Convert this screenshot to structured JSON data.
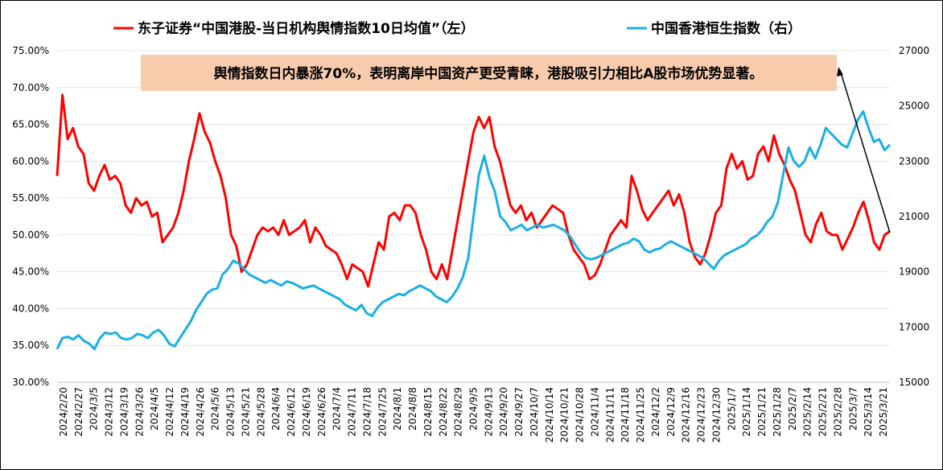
{
  "chart_data": {
    "type": "line",
    "title": "",
    "legend_position": "top",
    "grid": true,
    "annotation": "舆情指数日内暴涨70%，表明离岸中国资产更受青睐，港股吸引力相比A股市场优势显著。",
    "annotation_bg": "#F8CBAD",
    "y_left": {
      "min": 0.3,
      "max": 0.75,
      "ticks": [
        "30.00%",
        "35.00%",
        "40.00%",
        "45.00%",
        "50.00%",
        "55.00%",
        "60.00%",
        "65.00%",
        "70.00%",
        "75.00%"
      ]
    },
    "y_right": {
      "min": 15000,
      "max": 27000,
      "ticks": [
        "15000",
        "17000",
        "19000",
        "21000",
        "23000",
        "25000",
        "27000"
      ]
    },
    "x_tick_labels": [
      "2024/2/20",
      "2024/2/27",
      "2024/3/5",
      "2024/3/12",
      "2024/3/19",
      "2024/3/26",
      "2024/4/5",
      "2024/4/12",
      "2024/4/19",
      "2024/4/26",
      "2024/5/6",
      "2024/5/13",
      "2024/5/21",
      "2024/5/28",
      "2024/6/4",
      "2024/6/12",
      "2024/6/19",
      "2024/6/26",
      "2024/7/4",
      "2024/7/11",
      "2024/7/18",
      "2024/7/25",
      "2024/8/1",
      "2024/8/8",
      "2024/8/15",
      "2024/8/22",
      "2024/8/29",
      "2024/9/5",
      "2024/9/13",
      "2024/9/20",
      "2024/9/27",
      "2024/10/7",
      "2024/10/14",
      "2024/10/21",
      "2024/10/28",
      "2024/11/4",
      "2024/11/11",
      "2024/11/18",
      "2024/11/25",
      "2024/12/2",
      "2024/12/9",
      "2024/12/16",
      "2024/12/23",
      "2024/12/30",
      "2025/1/7",
      "2025/1/14",
      "2025/1/21",
      "2025/1/28",
      "2025/2/7",
      "2025/2/14",
      "2025/2/21",
      "2025/2/28",
      "2025/3/7",
      "2025/3/14",
      "2025/3/21"
    ],
    "series": [
      {
        "name": "东子证券“中国港股-当日机构舆情指数10日均值”（左）",
        "color": "#FF0000",
        "axis": "left",
        "values": [
          0.58,
          0.69,
          0.63,
          0.645,
          0.62,
          0.61,
          0.57,
          0.56,
          0.58,
          0.595,
          0.575,
          0.58,
          0.57,
          0.54,
          0.53,
          0.55,
          0.54,
          0.545,
          0.525,
          0.53,
          0.49,
          0.5,
          0.51,
          0.53,
          0.56,
          0.6,
          0.63,
          0.665,
          0.64,
          0.625,
          0.6,
          0.58,
          0.55,
          0.5,
          0.485,
          0.45,
          0.46,
          0.48,
          0.5,
          0.51,
          0.505,
          0.51,
          0.5,
          0.52,
          0.5,
          0.505,
          0.51,
          0.52,
          0.49,
          0.51,
          0.5,
          0.485,
          0.48,
          0.475,
          0.46,
          0.44,
          0.46,
          0.455,
          0.45,
          0.43,
          0.46,
          0.49,
          0.48,
          0.525,
          0.53,
          0.52,
          0.54,
          0.54,
          0.53,
          0.5,
          0.48,
          0.45,
          0.44,
          0.46,
          0.44,
          0.48,
          0.52,
          0.56,
          0.6,
          0.64,
          0.66,
          0.645,
          0.66,
          0.62,
          0.6,
          0.57,
          0.54,
          0.53,
          0.54,
          0.52,
          0.53,
          0.51,
          0.52,
          0.53,
          0.54,
          0.535,
          0.53,
          0.5,
          0.48,
          0.47,
          0.46,
          0.44,
          0.445,
          0.46,
          0.48,
          0.5,
          0.51,
          0.52,
          0.51,
          0.58,
          0.56,
          0.535,
          0.52,
          0.53,
          0.54,
          0.55,
          0.56,
          0.54,
          0.555,
          0.53,
          0.49,
          0.47,
          0.46,
          0.475,
          0.5,
          0.53,
          0.54,
          0.59,
          0.61,
          0.59,
          0.6,
          0.575,
          0.58,
          0.61,
          0.62,
          0.6,
          0.635,
          0.61,
          0.595,
          0.575,
          0.56,
          0.53,
          0.5,
          0.49,
          0.515,
          0.53,
          0.505,
          0.5,
          0.5,
          0.48,
          0.495,
          0.51,
          0.53,
          0.545,
          0.52,
          0.49,
          0.48,
          0.5,
          0.505
        ]
      },
      {
        "name": "中国香港恒生指数（右）",
        "color": "#1AAFE6",
        "axis": "right",
        "values": [
          16200,
          16600,
          16650,
          16550,
          16700,
          16500,
          16400,
          16200,
          16600,
          16800,
          16750,
          16800,
          16600,
          16550,
          16600,
          16750,
          16700,
          16600,
          16800,
          16900,
          16700,
          16400,
          16300,
          16600,
          16900,
          17200,
          17600,
          17900,
          18200,
          18350,
          18400,
          18900,
          19100,
          19400,
          19300,
          19100,
          18900,
          18800,
          18700,
          18600,
          18700,
          18600,
          18500,
          18650,
          18600,
          18500,
          18400,
          18450,
          18500,
          18400,
          18300,
          18200,
          18100,
          18000,
          17800,
          17700,
          17600,
          17800,
          17500,
          17400,
          17700,
          17900,
          18000,
          18100,
          18200,
          18150,
          18300,
          18400,
          18500,
          18400,
          18300,
          18100,
          18000,
          17900,
          18100,
          18400,
          18800,
          19500,
          21000,
          22500,
          23200,
          22400,
          21900,
          21000,
          20800,
          20500,
          20600,
          20700,
          20500,
          20600,
          20700,
          20600,
          20650,
          20700,
          20600,
          20500,
          20300,
          20000,
          19700,
          19500,
          19450,
          19500,
          19600,
          19700,
          19800,
          19900,
          20000,
          20050,
          20200,
          20100,
          19800,
          19700,
          19800,
          19850,
          20000,
          20100,
          20000,
          19900,
          19800,
          19700,
          19600,
          19500,
          19300,
          19100,
          19400,
          19600,
          19700,
          19800,
          19900,
          20000,
          20200,
          20300,
          20500,
          20800,
          21000,
          21500,
          22500,
          23500,
          23000,
          22800,
          23000,
          23500,
          23100,
          23600,
          24200,
          24000,
          23800,
          23600,
          23500,
          24000,
          24500,
          24800,
          24200,
          23700,
          23800,
          23400,
          23600
        ]
      }
    ]
  }
}
